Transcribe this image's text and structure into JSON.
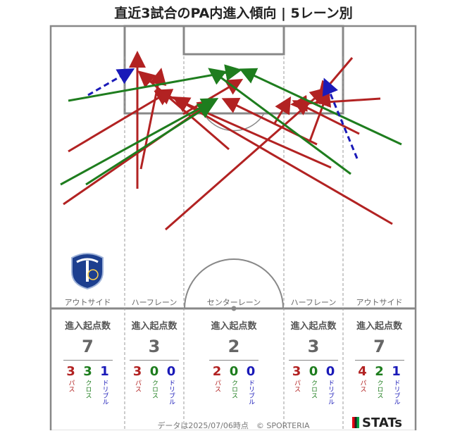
{
  "title": "直近3試合のPA内進入傾向 | 5レーン別",
  "lanes": [
    {
      "label": "アウトサイド",
      "header": "進入起点数",
      "total": "7",
      "pass": "3",
      "cross": "3",
      "dribble": "1"
    },
    {
      "label": "ハーフレーン",
      "header": "進入起点数",
      "total": "3",
      "pass": "3",
      "cross": "0",
      "dribble": "0"
    },
    {
      "label": "センターレーン",
      "header": "進入起点数",
      "total": "2",
      "pass": "2",
      "cross": "0",
      "dribble": "0"
    },
    {
      "label": "ハーフレーン",
      "header": "進入起点数",
      "total": "3",
      "pass": "3",
      "cross": "0",
      "dribble": "0"
    },
    {
      "label": "アウトサイド",
      "header": "進入起点数",
      "total": "7",
      "pass": "4",
      "cross": "2",
      "dribble": "1"
    }
  ],
  "type_labels": {
    "pass": "パス",
    "cross": "クロス",
    "dribble": "ドリブル"
  },
  "colors": {
    "pass": "#b22222",
    "cross": "#1e7d1e",
    "dribble": "#1a1ab8"
  },
  "footer": "データは2025/07/06時点　© SPORTERIA",
  "brand": "STATs",
  "logo_text": "OITA TRINITA 1994"
}
